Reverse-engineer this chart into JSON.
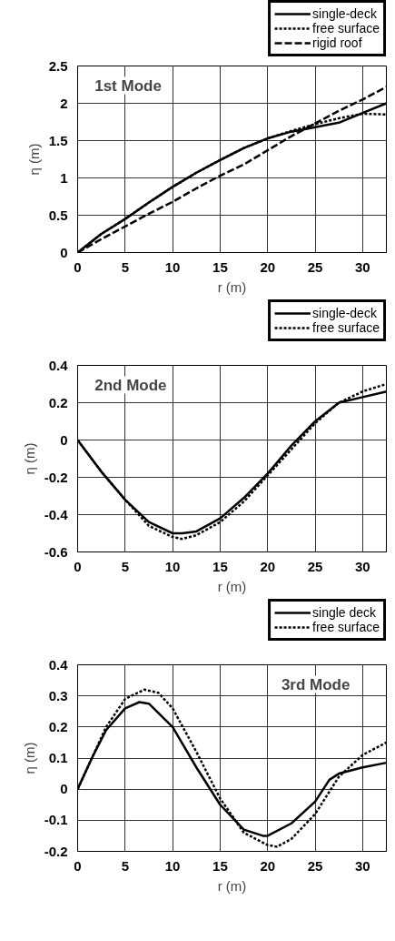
{
  "chart_data": [
    {
      "type": "line",
      "xlabel": "r (m)",
      "ylabel": "η (m)",
      "annotations": [
        "1st Mode"
      ],
      "xlim": [
        0,
        32.5
      ],
      "xticks": [
        0,
        5,
        10,
        15,
        20,
        25,
        30
      ],
      "ylim": [
        0,
        2.5
      ],
      "yticks": [
        0,
        0.5,
        1,
        1.5,
        2,
        2.5
      ],
      "grid": true,
      "legend": "top right",
      "x": [
        0,
        2.5,
        5,
        7.5,
        10,
        12.5,
        15,
        17.5,
        20,
        22.5,
        25,
        27.5,
        30,
        32.5
      ],
      "series": [
        {
          "name": "single-deck",
          "color": "#000000",
          "line_style": "solid",
          "values": [
            0,
            0.25,
            0.45,
            0.67,
            0.88,
            1.07,
            1.24,
            1.4,
            1.53,
            1.62,
            1.68,
            1.74,
            1.87,
            2.0
          ]
        },
        {
          "name": "free surface",
          "color": "#000000",
          "line_style": "dotted",
          "values": [
            0,
            0.25,
            0.45,
            0.67,
            0.88,
            1.07,
            1.24,
            1.4,
            1.53,
            1.63,
            1.72,
            1.8,
            1.86,
            1.85
          ]
        },
        {
          "name": "rigid roof",
          "color": "#000000",
          "line_style": "dashed",
          "values": [
            0,
            0.18,
            0.35,
            0.52,
            0.68,
            0.86,
            1.03,
            1.18,
            1.37,
            1.56,
            1.73,
            1.9,
            2.05,
            2.22
          ]
        }
      ]
    },
    {
      "type": "line",
      "xlabel": "r (m)",
      "ylabel": "η (m)",
      "annotations": [
        "2nd Mode"
      ],
      "xlim": [
        0,
        32.5
      ],
      "xticks": [
        0,
        5,
        10,
        15,
        20,
        25,
        30
      ],
      "ylim": [
        -0.6,
        0.4
      ],
      "yticks": [
        -0.6,
        -0.4,
        -0.2,
        0,
        0.2,
        0.4
      ],
      "grid": true,
      "legend": "top right",
      "x": [
        0,
        2.5,
        5,
        7.5,
        10,
        11,
        12.5,
        15,
        17.5,
        20,
        22.5,
        25,
        27.5,
        30,
        32.5
      ],
      "series": [
        {
          "name": "single-deck",
          "color": "#000000",
          "line_style": "solid",
          "values": [
            0,
            -0.17,
            -0.32,
            -0.44,
            -0.5,
            -0.5,
            -0.49,
            -0.42,
            -0.31,
            -0.18,
            -0.03,
            0.1,
            0.2,
            0.23,
            0.26
          ]
        },
        {
          "name": "free surface",
          "color": "#000000",
          "line_style": "dotted",
          "values": [
            0,
            -0.17,
            -0.32,
            -0.46,
            -0.52,
            -0.53,
            -0.51,
            -0.44,
            -0.33,
            -0.19,
            -0.05,
            0.09,
            0.2,
            0.26,
            0.3
          ]
        }
      ]
    },
    {
      "type": "line",
      "xlabel": "r (m)",
      "ylabel": "η (m)",
      "annotations": [
        "3rd Mode"
      ],
      "xlim": [
        0,
        32.5
      ],
      "xticks": [
        0,
        5,
        10,
        15,
        20,
        25,
        30
      ],
      "ylim": [
        -0.2,
        0.4
      ],
      "yticks": [
        -0.2,
        -0.1,
        0,
        0.1,
        0.2,
        0.3,
        0.4
      ],
      "grid": true,
      "legend": "top right",
      "series": [
        {
          "name": "single deck",
          "color": "#000000",
          "line_style": "solid",
          "x": [
            0,
            1.5,
            3,
            5,
            6.5,
            7.5,
            10,
            12.5,
            15,
            17.5,
            19.5,
            20,
            22.5,
            25,
            26.5,
            27.5,
            30,
            32.5
          ],
          "values": [
            0,
            0.1,
            0.19,
            0.26,
            0.28,
            0.275,
            0.2,
            0.07,
            -0.05,
            -0.13,
            -0.15,
            -0.15,
            -0.11,
            -0.04,
            0.03,
            0.05,
            0.07,
            0.085
          ]
        },
        {
          "name": "free surface",
          "color": "#000000",
          "line_style": "dotted",
          "x": [
            0,
            1.5,
            3,
            5,
            7,
            8.5,
            10,
            12.5,
            15,
            17.5,
            20,
            21,
            22.5,
            25,
            27.5,
            30,
            32.5
          ],
          "values": [
            0,
            0.1,
            0.2,
            0.29,
            0.32,
            0.31,
            0.26,
            0.12,
            -0.03,
            -0.14,
            -0.18,
            -0.185,
            -0.16,
            -0.08,
            0.04,
            0.11,
            0.15
          ]
        }
      ]
    }
  ]
}
